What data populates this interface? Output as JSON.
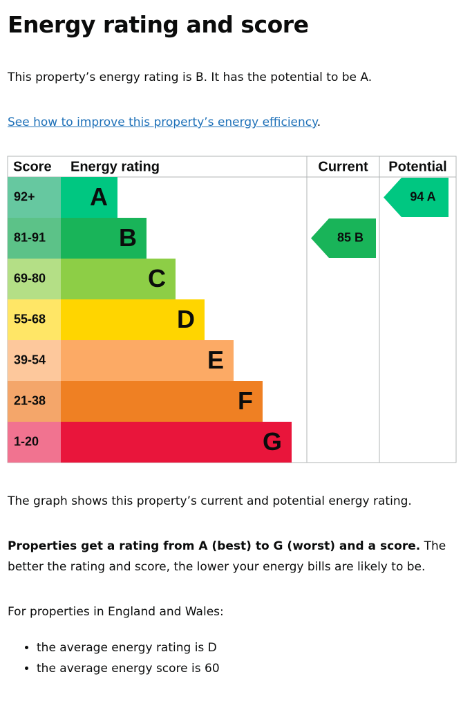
{
  "heading": "Energy rating and score",
  "intro": "This property’s energy rating is B. It has the potential to be A.",
  "link": "See how to improve this property’s energy efficiency",
  "link_end": ".",
  "epc": {
    "headers": [
      "Score",
      "Energy rating",
      "Current",
      "Potential"
    ],
    "bands": [
      {
        "score": "92+",
        "rating": "A"
      },
      {
        "score": "81-91",
        "rating": "B"
      },
      {
        "score": "69-80",
        "rating": "C"
      },
      {
        "score": "55-68",
        "rating": "D"
      },
      {
        "score": "39-54",
        "rating": "E"
      },
      {
        "score": "21-38",
        "rating": "F"
      },
      {
        "score": "1-20",
        "rating": "G"
      }
    ],
    "current": "85 B",
    "potential": "94 A"
  },
  "graph_note": "The graph shows this property’s current and potential energy rating.",
  "ratings_note": {
    "bold": "Properties get a rating from A (best) to G (worst) and a score.",
    "text": " The better the rating and score, the lower your energy bills are likely to be."
  },
  "england": "For properties in England and Wales:",
  "bullets": [
    "the average energy rating is D",
    "the average energy score is 60"
  ]
}
